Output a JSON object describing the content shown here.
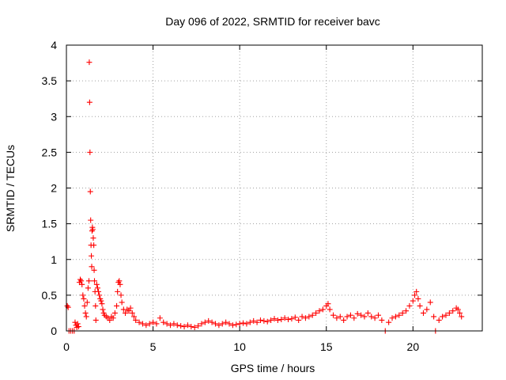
{
  "chart_data": {
    "type": "scatter",
    "title": "Day 096 of 2022, SRMTID for receiver bavc",
    "xlabel": "GPS time / hours",
    "ylabel": "SRMTID / TECUs",
    "xlim": [
      0,
      24
    ],
    "ylim": [
      0,
      4
    ],
    "xticks": [
      0,
      5,
      10,
      15,
      20
    ],
    "xtick_labels": [
      "0",
      "5",
      "10",
      "15",
      "20"
    ],
    "yticks": [
      0,
      0.5,
      1,
      1.5,
      2,
      2.5,
      3,
      3.5,
      4
    ],
    "ytick_labels": [
      "0",
      "0.5",
      "1",
      "1.5",
      "2",
      "2.5",
      "3",
      "3.5",
      "4"
    ],
    "grid": true,
    "marker": "+",
    "color": "#ff0000",
    "series": [
      {
        "name": "SRMTID",
        "points": [
          [
            0.05,
            0.35
          ],
          [
            0.1,
            0.33
          ],
          [
            0.15,
            0.0
          ],
          [
            0.25,
            0.0
          ],
          [
            0.35,
            0.0
          ],
          [
            0.45,
            0.0
          ],
          [
            0.5,
            0.12
          ],
          [
            0.55,
            0.08
          ],
          [
            0.6,
            0.05
          ],
          [
            0.65,
            0.1
          ],
          [
            0.7,
            0.06
          ],
          [
            0.75,
            0.68
          ],
          [
            0.8,
            0.72
          ],
          [
            0.85,
            0.7
          ],
          [
            0.9,
            0.65
          ],
          [
            0.95,
            0.5
          ],
          [
            1.0,
            0.45
          ],
          [
            1.05,
            0.35
          ],
          [
            1.1,
            0.25
          ],
          [
            1.15,
            0.2
          ],
          [
            1.2,
            0.4
          ],
          [
            1.25,
            0.6
          ],
          [
            1.3,
            0.7
          ],
          [
            1.32,
            3.76
          ],
          [
            1.34,
            3.2
          ],
          [
            1.36,
            2.5
          ],
          [
            1.38,
            1.95
          ],
          [
            1.4,
            1.55
          ],
          [
            1.42,
            1.2
          ],
          [
            1.44,
            1.05
          ],
          [
            1.46,
            0.9
          ],
          [
            1.48,
            1.4
          ],
          [
            1.5,
            1.45
          ],
          [
            1.52,
            1.42
          ],
          [
            1.55,
            1.3
          ],
          [
            1.58,
            1.2
          ],
          [
            1.6,
            0.85
          ],
          [
            1.62,
            0.7
          ],
          [
            1.65,
            0.55
          ],
          [
            1.68,
            0.35
          ],
          [
            1.7,
            0.15
          ],
          [
            1.75,
            0.65
          ],
          [
            1.8,
            0.6
          ],
          [
            1.85,
            0.55
          ],
          [
            1.9,
            0.5
          ],
          [
            1.95,
            0.45
          ],
          [
            2.0,
            0.42
          ],
          [
            2.05,
            0.38
          ],
          [
            2.1,
            0.3
          ],
          [
            2.15,
            0.25
          ],
          [
            2.2,
            0.22
          ],
          [
            2.3,
            0.2
          ],
          [
            2.4,
            0.18
          ],
          [
            2.5,
            0.15
          ],
          [
            2.6,
            0.2
          ],
          [
            2.7,
            0.18
          ],
          [
            2.8,
            0.25
          ],
          [
            2.9,
            0.35
          ],
          [
            2.95,
            0.55
          ],
          [
            3.0,
            0.68
          ],
          [
            3.05,
            0.7
          ],
          [
            3.1,
            0.65
          ],
          [
            3.15,
            0.5
          ],
          [
            3.2,
            0.4
          ],
          [
            3.3,
            0.3
          ],
          [
            3.4,
            0.25
          ],
          [
            3.5,
            0.3
          ],
          [
            3.6,
            0.28
          ],
          [
            3.7,
            0.32
          ],
          [
            3.8,
            0.25
          ],
          [
            3.9,
            0.2
          ],
          [
            4.0,
            0.15
          ],
          [
            4.2,
            0.12
          ],
          [
            4.4,
            0.1
          ],
          [
            4.6,
            0.08
          ],
          [
            4.8,
            0.1
          ],
          [
            5.0,
            0.12
          ],
          [
            5.2,
            0.1
          ],
          [
            5.4,
            0.18
          ],
          [
            5.6,
            0.12
          ],
          [
            5.8,
            0.1
          ],
          [
            6.0,
            0.08
          ],
          [
            6.2,
            0.1
          ],
          [
            6.4,
            0.08
          ],
          [
            6.6,
            0.07
          ],
          [
            6.8,
            0.06
          ],
          [
            7.0,
            0.08
          ],
          [
            7.2,
            0.06
          ],
          [
            7.4,
            0.05
          ],
          [
            7.6,
            0.07
          ],
          [
            7.8,
            0.1
          ],
          [
            8.0,
            0.12
          ],
          [
            8.2,
            0.14
          ],
          [
            8.4,
            0.12
          ],
          [
            8.6,
            0.1
          ],
          [
            8.8,
            0.08
          ],
          [
            9.0,
            0.1
          ],
          [
            9.2,
            0.12
          ],
          [
            9.4,
            0.1
          ],
          [
            9.6,
            0.08
          ],
          [
            9.8,
            0.09
          ],
          [
            10.0,
            0.1
          ],
          [
            10.2,
            0.11
          ],
          [
            10.4,
            0.1
          ],
          [
            10.6,
            0.12
          ],
          [
            10.8,
            0.14
          ],
          [
            11.0,
            0.12
          ],
          [
            11.2,
            0.15
          ],
          [
            11.4,
            0.14
          ],
          [
            11.6,
            0.13
          ],
          [
            11.8,
            0.15
          ],
          [
            12.0,
            0.17
          ],
          [
            12.2,
            0.15
          ],
          [
            12.4,
            0.16
          ],
          [
            12.6,
            0.18
          ],
          [
            12.8,
            0.16
          ],
          [
            13.0,
            0.17
          ],
          [
            13.2,
            0.19
          ],
          [
            13.4,
            0.15
          ],
          [
            13.6,
            0.2
          ],
          [
            13.8,
            0.18
          ],
          [
            14.0,
            0.2
          ],
          [
            14.2,
            0.22
          ],
          [
            14.4,
            0.25
          ],
          [
            14.6,
            0.28
          ],
          [
            14.8,
            0.3
          ],
          [
            15.0,
            0.35
          ],
          [
            15.1,
            0.38
          ],
          [
            15.2,
            0.3
          ],
          [
            15.4,
            0.22
          ],
          [
            15.6,
            0.18
          ],
          [
            15.8,
            0.2
          ],
          [
            16.0,
            0.15
          ],
          [
            16.2,
            0.2
          ],
          [
            16.4,
            0.22
          ],
          [
            16.6,
            0.18
          ],
          [
            16.8,
            0.24
          ],
          [
            17.0,
            0.22
          ],
          [
            17.2,
            0.2
          ],
          [
            17.4,
            0.25
          ],
          [
            17.6,
            0.2
          ],
          [
            17.8,
            0.18
          ],
          [
            18.0,
            0.22
          ],
          [
            18.2,
            0.15
          ],
          [
            18.4,
            0.0
          ],
          [
            18.6,
            0.12
          ],
          [
            18.8,
            0.18
          ],
          [
            19.0,
            0.2
          ],
          [
            19.2,
            0.22
          ],
          [
            19.4,
            0.25
          ],
          [
            19.6,
            0.28
          ],
          [
            19.8,
            0.35
          ],
          [
            20.0,
            0.42
          ],
          [
            20.1,
            0.5
          ],
          [
            20.2,
            0.55
          ],
          [
            20.3,
            0.45
          ],
          [
            20.4,
            0.35
          ],
          [
            20.6,
            0.25
          ],
          [
            20.8,
            0.3
          ],
          [
            21.0,
            0.4
          ],
          [
            21.2,
            0.2
          ],
          [
            21.3,
            0.0
          ],
          [
            21.5,
            0.15
          ],
          [
            21.7,
            0.2
          ],
          [
            21.9,
            0.22
          ],
          [
            22.1,
            0.25
          ],
          [
            22.3,
            0.28
          ],
          [
            22.5,
            0.32
          ],
          [
            22.6,
            0.3
          ],
          [
            22.7,
            0.25
          ],
          [
            22.8,
            0.2
          ]
        ]
      }
    ]
  }
}
